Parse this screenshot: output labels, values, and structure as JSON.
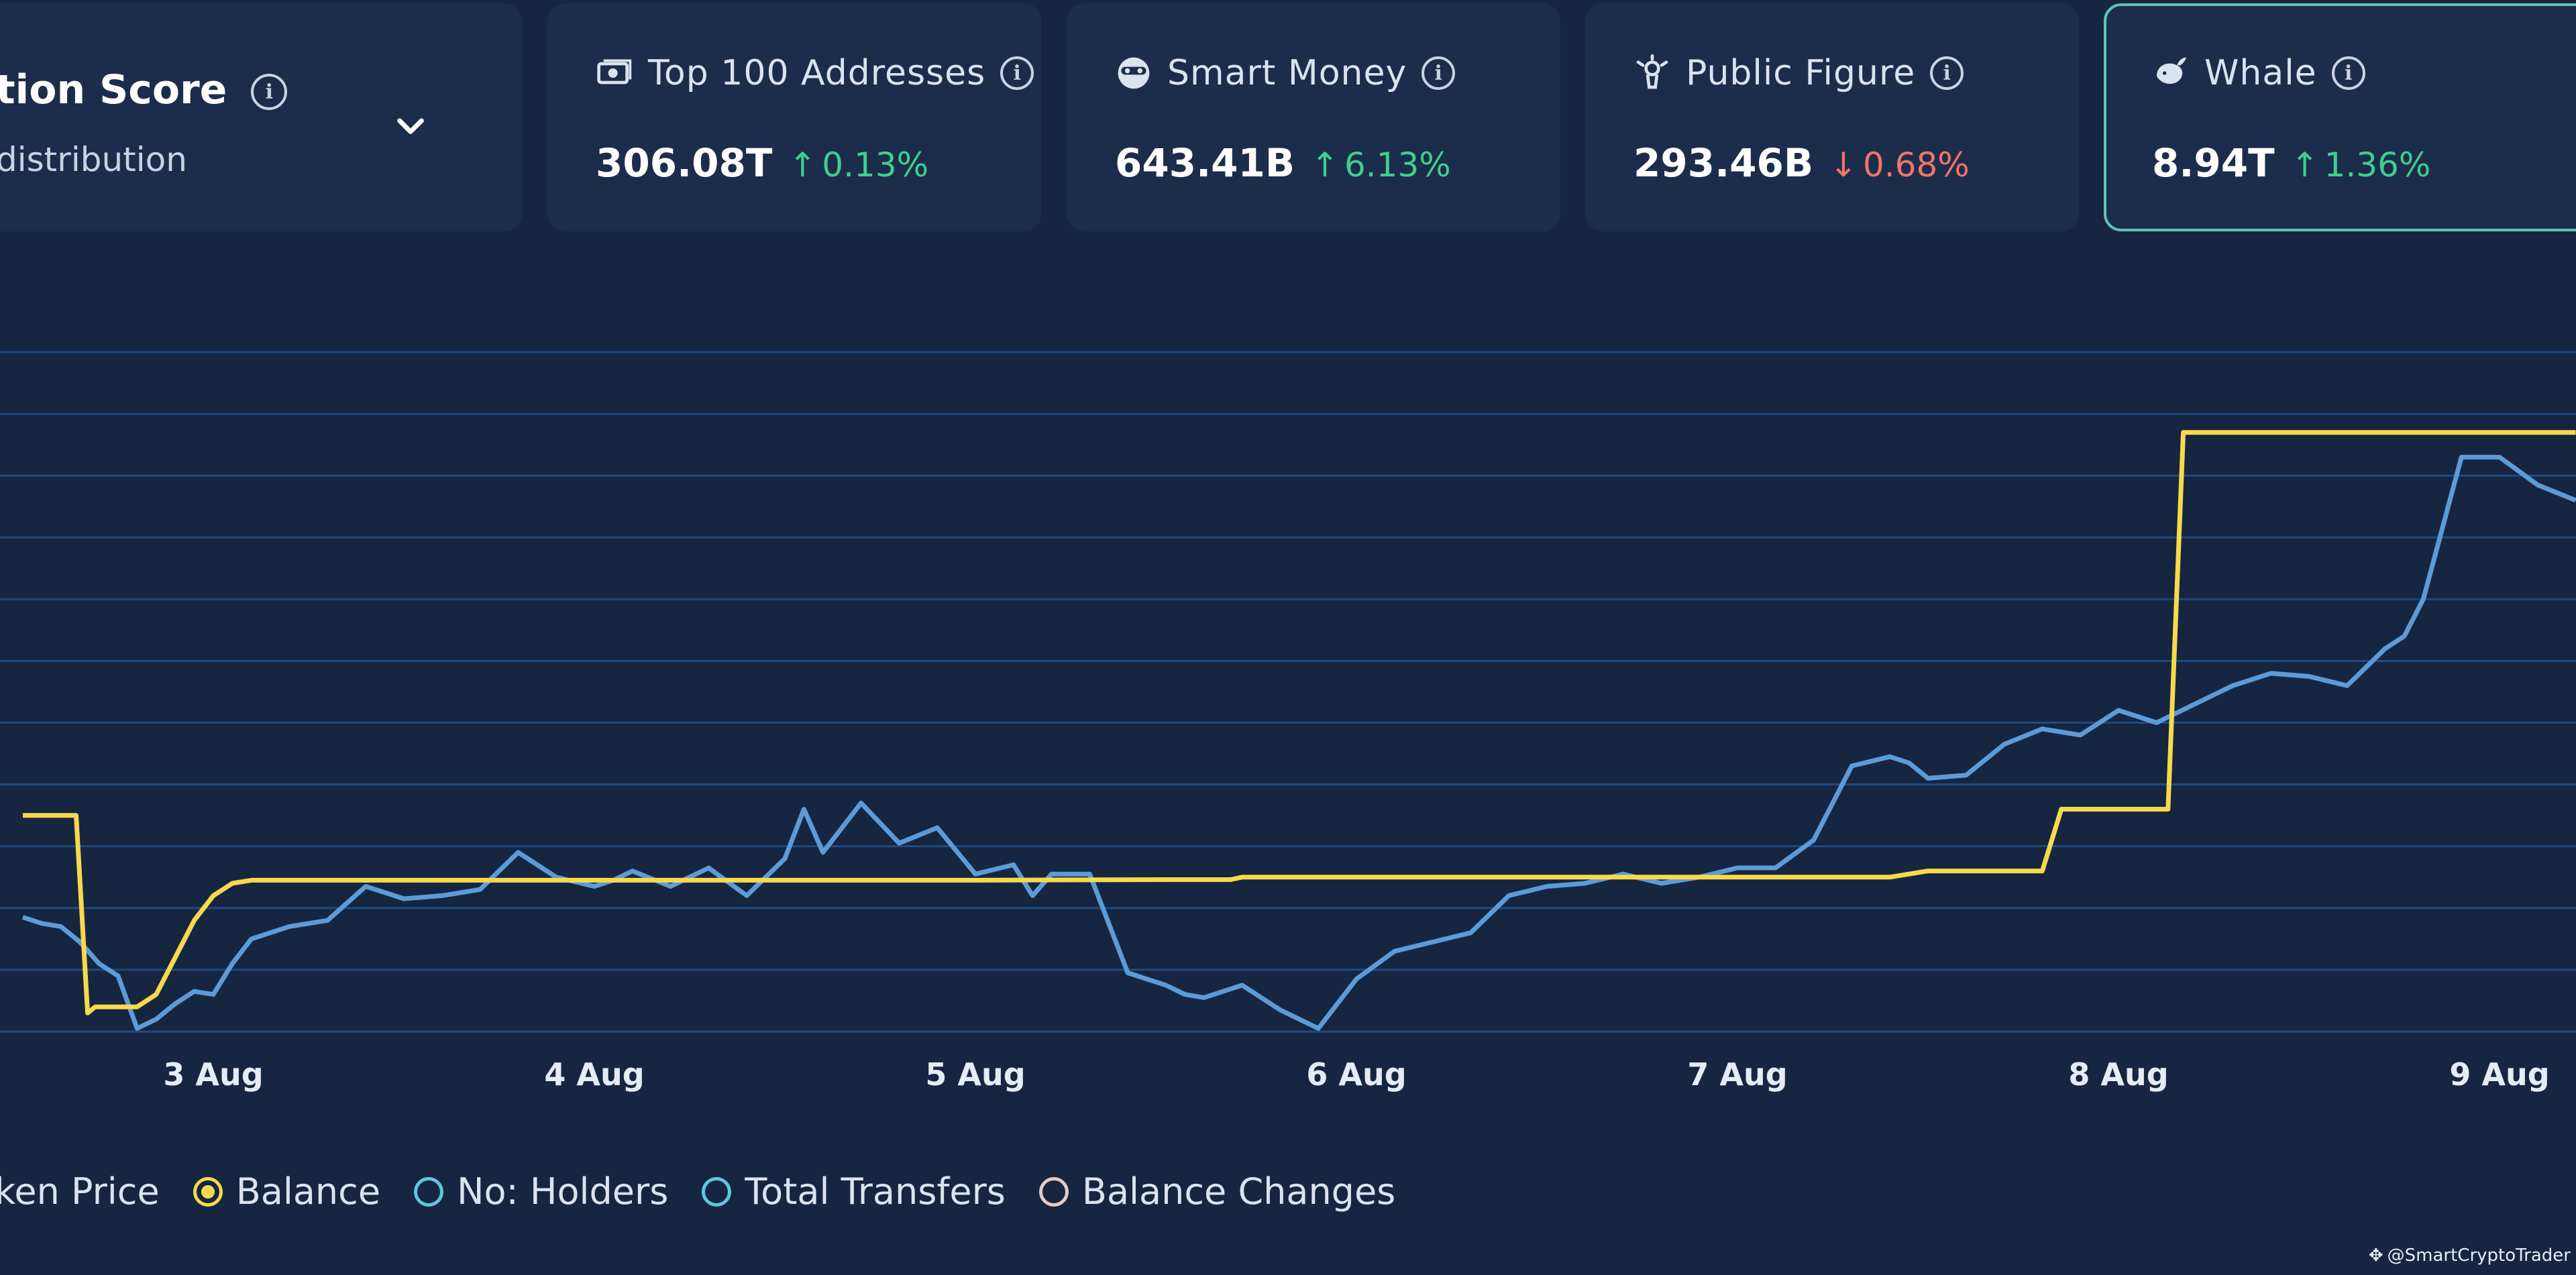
{
  "score_card": {
    "title": "tion Score",
    "subtitle": "distribution"
  },
  "cards": [
    {
      "label": "Top 100 Addresses",
      "icon": "money-icon",
      "value": "306.08T",
      "change": "0.13%",
      "direction": "up"
    },
    {
      "label": "Smart Money",
      "icon": "smart-money-icon",
      "value": "643.41B",
      "change": "6.13%",
      "direction": "up"
    },
    {
      "label": "Public Figure",
      "icon": "public-figure-icon",
      "value": "293.46B",
      "change": "0.68%",
      "direction": "down"
    },
    {
      "label": "Whale",
      "icon": "whale-icon",
      "value": "8.94T",
      "change": "1.36%",
      "direction": "up",
      "active": true
    }
  ],
  "colors": {
    "background": "#162641",
    "card": "#1c2d4b",
    "active_border": "#5ec4b4",
    "balance_line": "#f7d94c",
    "series_line": "#5b9bd8",
    "grid": "#1f4a80",
    "up": "#3ecf8e",
    "down": "#ef7567"
  },
  "chart_data": {
    "type": "line",
    "x_ticks": [
      "3 Aug",
      "4 Aug",
      "5 Aug",
      "6 Aug",
      "7 Aug",
      "8 Aug",
      "9 Aug"
    ],
    "grid": true,
    "series": [
      {
        "name": "Balance",
        "color": "#f7d94c",
        "x": [
          2.5,
          2.64,
          2.67,
          2.69,
          2.72,
          2.8,
          2.85,
          2.9,
          2.95,
          3.0,
          3.05,
          3.1,
          3.2,
          3.5,
          4.0,
          4.5,
          5.0,
          5.5,
          5.67,
          5.7,
          6.0,
          6.5,
          7.0,
          7.4,
          7.45,
          7.5,
          7.8,
          7.85,
          8.13,
          8.17,
          9.2
        ],
        "y": [
          3.5,
          3.5,
          0.3,
          0.4,
          0.4,
          0.4,
          0.6,
          1.2,
          1.8,
          2.2,
          2.4,
          2.45,
          2.45,
          2.45,
          2.45,
          2.45,
          2.45,
          2.46,
          2.46,
          2.5,
          2.5,
          2.5,
          2.5,
          2.5,
          2.55,
          2.6,
          2.6,
          3.6,
          3.6,
          9.7,
          9.7
        ]
      },
      {
        "name": "Token Price",
        "color": "#5b9bd8",
        "x": [
          2.5,
          2.55,
          2.6,
          2.65,
          2.7,
          2.75,
          2.8,
          2.85,
          2.9,
          2.95,
          3.0,
          3.05,
          3.1,
          3.15,
          3.2,
          3.3,
          3.4,
          3.5,
          3.6,
          3.7,
          3.8,
          3.9,
          4.0,
          4.05,
          4.1,
          4.2,
          4.3,
          4.4,
          4.5,
          4.55,
          4.6,
          4.7,
          4.8,
          4.9,
          5.0,
          5.1,
          5.15,
          5.2,
          5.3,
          5.4,
          5.5,
          5.55,
          5.6,
          5.7,
          5.8,
          5.9,
          6.0,
          6.1,
          6.2,
          6.3,
          6.4,
          6.5,
          6.6,
          6.7,
          6.8,
          6.9,
          7.0,
          7.1,
          7.2,
          7.3,
          7.4,
          7.45,
          7.5,
          7.6,
          7.7,
          7.8,
          7.9,
          8.0,
          8.1,
          8.2,
          8.3,
          8.4,
          8.5,
          8.6,
          8.7,
          8.75,
          8.8,
          8.9,
          9.0,
          9.1,
          9.2
        ],
        "y": [
          1.85,
          1.75,
          1.7,
          1.45,
          1.1,
          0.9,
          0.05,
          0.2,
          0.45,
          0.65,
          0.6,
          1.1,
          1.5,
          1.6,
          1.7,
          1.8,
          2.35,
          2.15,
          2.2,
          2.3,
          2.9,
          2.5,
          2.35,
          2.45,
          2.6,
          2.35,
          2.65,
          2.2,
          2.8,
          3.6,
          2.9,
          3.7,
          3.05,
          3.3,
          2.55,
          2.7,
          2.2,
          2.55,
          2.55,
          0.95,
          0.75,
          0.6,
          0.55,
          0.75,
          0.35,
          0.05,
          0.85,
          1.3,
          1.45,
          1.6,
          2.2,
          2.35,
          2.4,
          2.55,
          2.4,
          2.5,
          2.65,
          2.65,
          3.1,
          4.3,
          4.45,
          4.35,
          4.1,
          4.15,
          4.65,
          4.9,
          4.8,
          5.2,
          5.0,
          5.3,
          5.6,
          5.8,
          5.75,
          5.6,
          6.2,
          6.4,
          7.0,
          9.3,
          9.3,
          8.85,
          8.6
        ]
      }
    ]
  },
  "legend": [
    {
      "label": "ken Price",
      "state": "none"
    },
    {
      "label": "Balance",
      "state": "selected",
      "color": "#f7d94c"
    },
    {
      "label": "No: Holders",
      "state": "unselected",
      "color": "#5bc8e0"
    },
    {
      "label": "Total Transfers",
      "state": "unselected",
      "color": "#5bc8e0"
    },
    {
      "label": "Balance Changes",
      "state": "unselected",
      "color": "#e8c9c4"
    }
  ],
  "watermark": "@SmartCryptoTrader"
}
